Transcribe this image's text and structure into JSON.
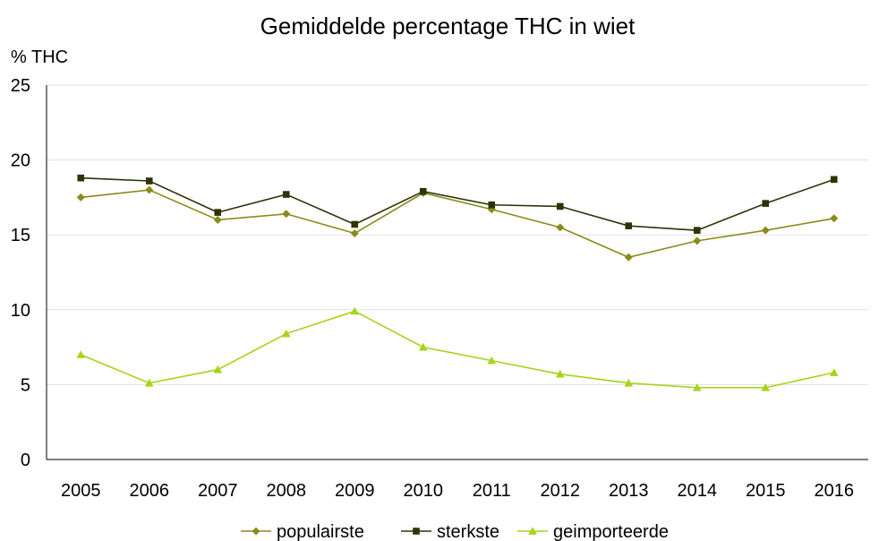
{
  "chart_data": {
    "type": "line",
    "title": "Gemiddelde percentage THC in wiet",
    "ylabel": "% THC",
    "xlabel": "",
    "ylim": [
      0,
      25
    ],
    "yticks": [
      0,
      5,
      10,
      15,
      20,
      25
    ],
    "grid": true,
    "legend_position": "bottom",
    "categories": [
      "2005",
      "2006",
      "2007",
      "2008",
      "2009",
      "2010",
      "2011",
      "2012",
      "2013",
      "2014",
      "2015",
      "2016"
    ],
    "series": [
      {
        "name": "populairste",
        "color": "#8b8b1a",
        "marker": "diamond",
        "values": [
          17.5,
          18.0,
          16.0,
          16.4,
          15.1,
          17.8,
          16.7,
          15.5,
          13.5,
          14.6,
          15.3,
          16.1
        ]
      },
      {
        "name": "sterkste",
        "color": "#2e3308",
        "marker": "square",
        "values": [
          18.8,
          18.6,
          16.5,
          17.7,
          15.7,
          17.9,
          17.0,
          16.9,
          15.6,
          15.3,
          17.1,
          18.7
        ]
      },
      {
        "name": "geimporteerde",
        "color": "#a6d41a",
        "marker": "triangle",
        "values": [
          7.0,
          5.1,
          6.0,
          8.4,
          9.9,
          7.5,
          6.6,
          5.7,
          5.1,
          4.8,
          4.8,
          5.8
        ]
      }
    ]
  }
}
